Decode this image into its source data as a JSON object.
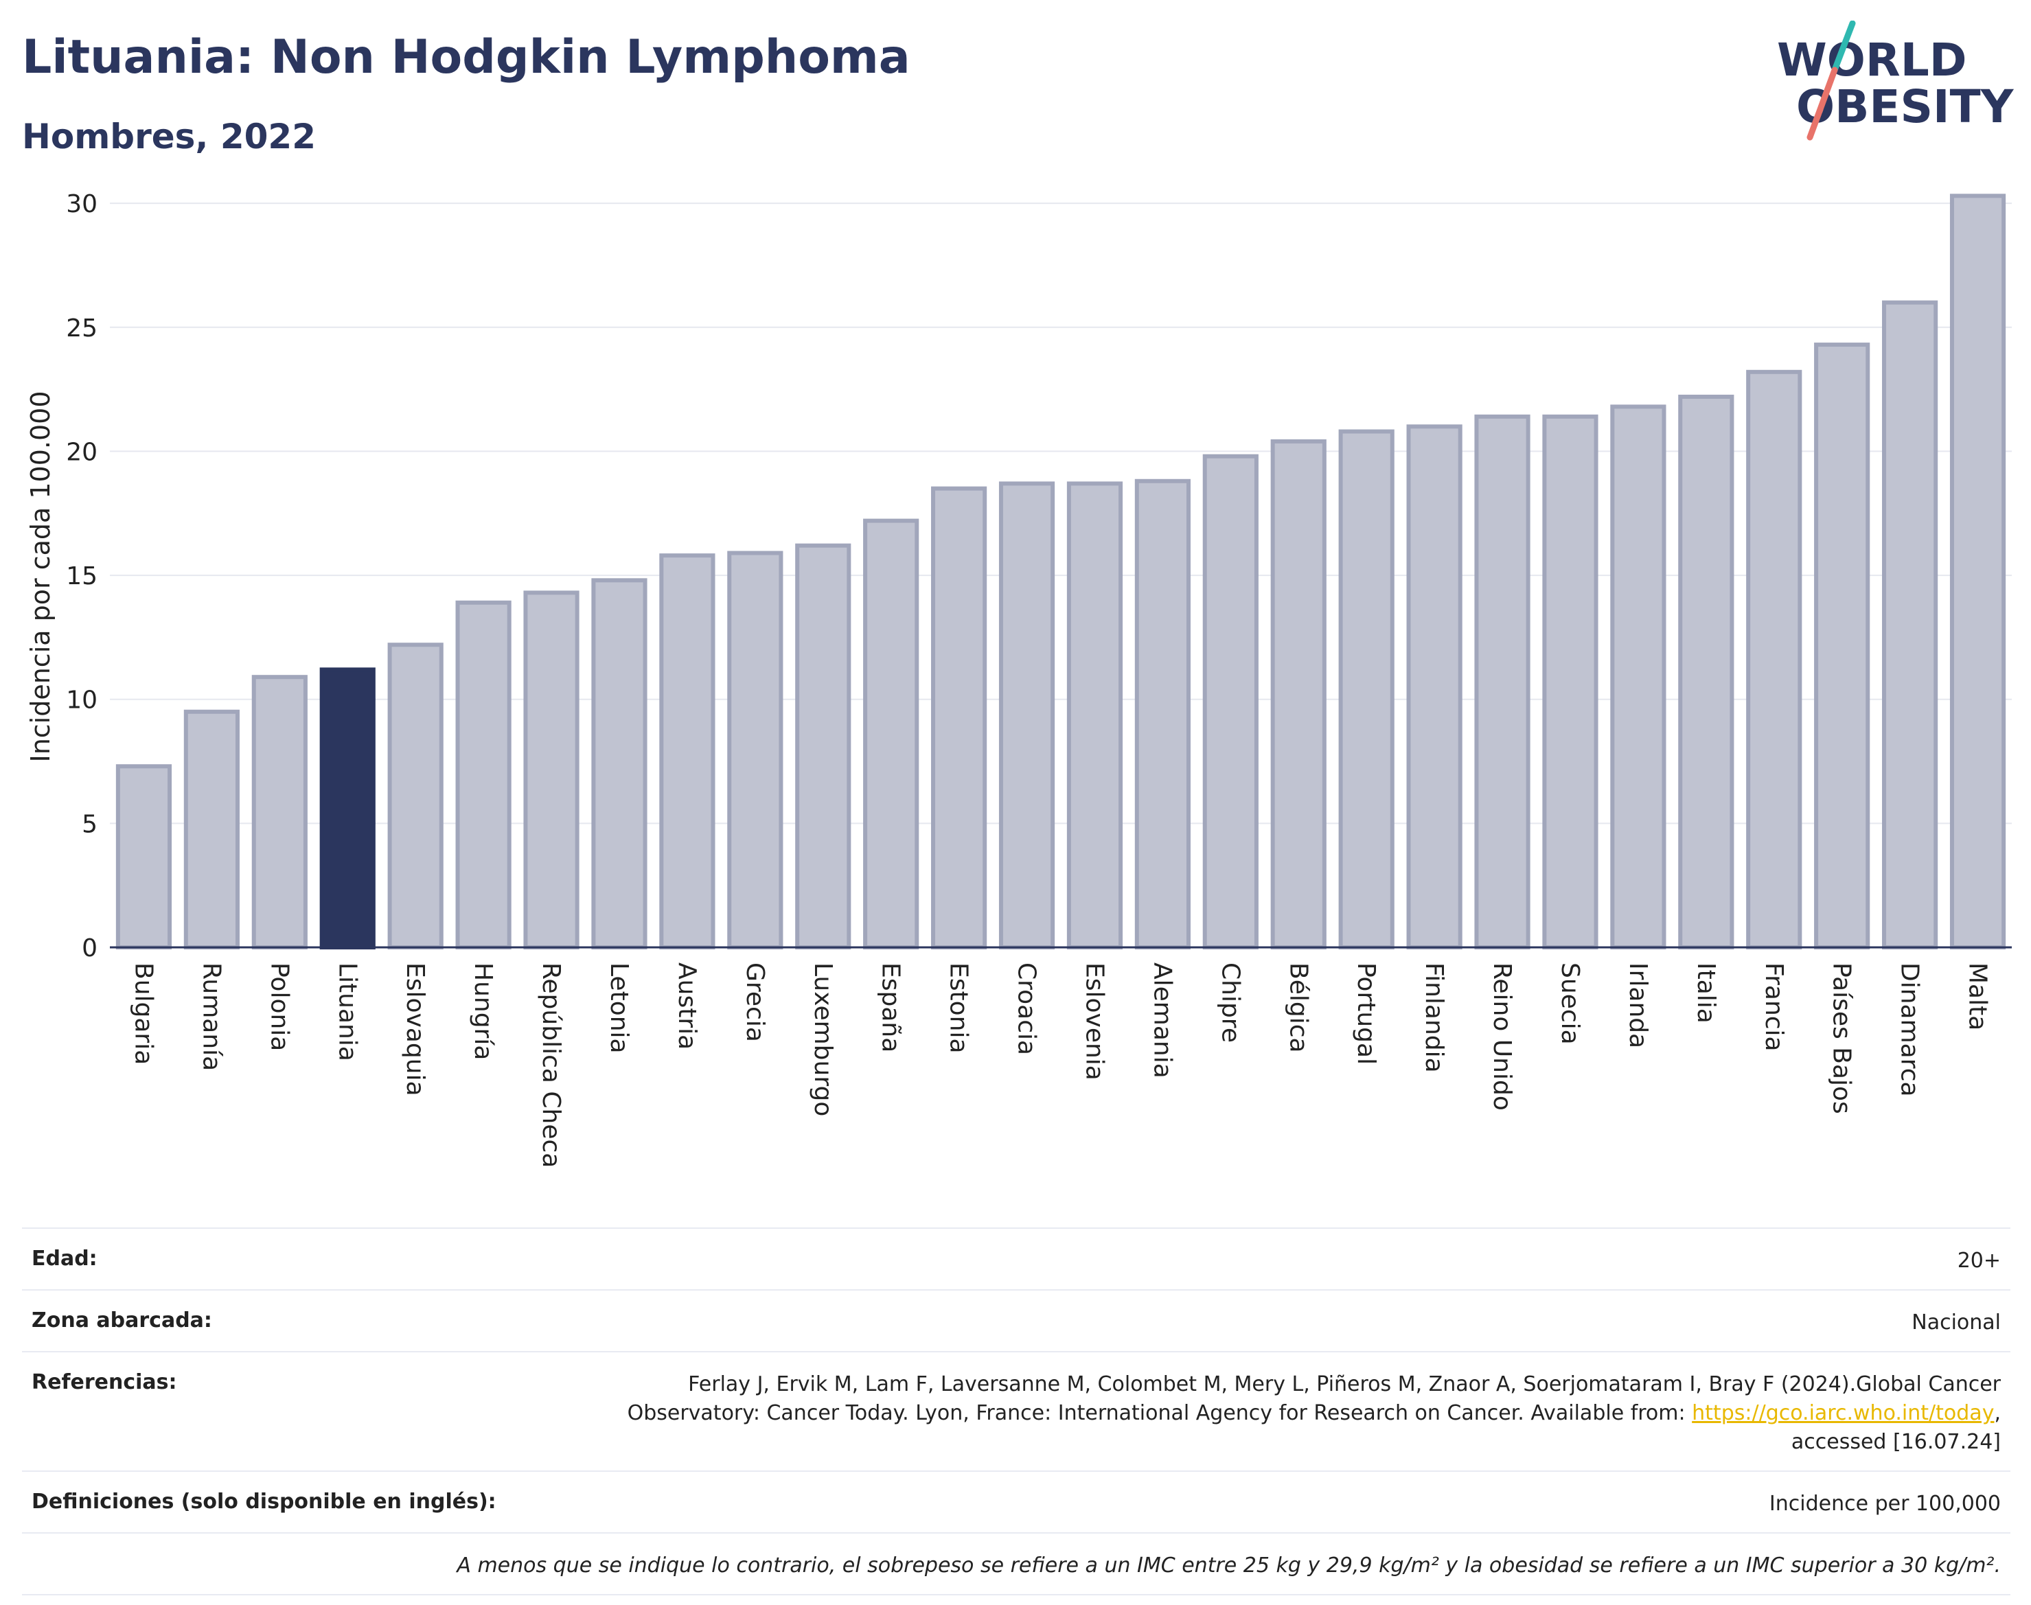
{
  "header": {
    "title": "Lituania: Non Hodgkin Lymphoma",
    "subtitle": "Hombres, 2022"
  },
  "logo": {
    "line1": "WORLD",
    "line2": "OBESITY"
  },
  "colors": {
    "highlight_bar": "#2b365e",
    "bar_fill": "#c0c3d1",
    "bar_stroke": "#a1a6bb",
    "logo_text": "#2b365e",
    "logo_accent_teal": "#2fb8b0",
    "logo_accent_red": "#e8736a",
    "link": "#e8b800"
  },
  "chart_data": {
    "type": "bar",
    "ylabel": "Incidencia por cada 100.000",
    "ylim": [
      0,
      31
    ],
    "yticks": [
      0,
      5,
      10,
      15,
      20,
      25,
      30
    ],
    "grid": true,
    "highlight": "Lituania",
    "categories": [
      "Bulgaria",
      "Rumanía",
      "Polonia",
      "Lituania",
      "Eslovaquia",
      "Hungría",
      "República Checa",
      "Letonia",
      "Austria",
      "Grecia",
      "Luxemburgo",
      "España",
      "Estonia",
      "Croacia",
      "Eslovenia",
      "Alemania",
      "Chipre",
      "Bélgica",
      "Portugal",
      "Finlandia",
      "Reino Unido",
      "Suecia",
      "Irlanda",
      "Italia",
      "Francia",
      "Países Bajos",
      "Dinamarca",
      "Malta"
    ],
    "values": [
      7.3,
      9.5,
      10.9,
      11.2,
      12.2,
      13.9,
      14.3,
      14.8,
      15.8,
      15.9,
      16.2,
      17.2,
      18.5,
      18.7,
      18.7,
      18.8,
      19.8,
      20.4,
      20.8,
      21.0,
      21.4,
      21.4,
      21.8,
      22.2,
      23.2,
      24.3,
      26.0,
      30.3
    ]
  },
  "info": {
    "age_label": "Edad:",
    "age_value": "20+",
    "area_label": "Zona abarcada:",
    "area_value": "Nacional",
    "ref_label": "Referencias:",
    "ref_text_1": "Ferlay J, Ervik M, Lam F, Laversanne M, Colombet M, Mery L, Piñeros M, Znaor A, Soerjomataram I, Bray F (2024).Global Cancer",
    "ref_text_2": "Observatory: Cancer Today. Lyon, France: International Agency for Research on Cancer. Available from: ",
    "ref_link": "https://gco.iarc.who.int/today",
    "ref_text_3": ",",
    "ref_text_4": "accessed [16.07.24]",
    "def_label": "Definiciones (solo disponible en inglés):",
    "def_value": "Incidence per 100,000",
    "note": "A menos que se indique lo contrario, el sobrepeso se refiere a un IMC entre 25 kg y 29,9 kg/m² y la obesidad se refiere a un IMC superior a 30 kg/m²."
  }
}
